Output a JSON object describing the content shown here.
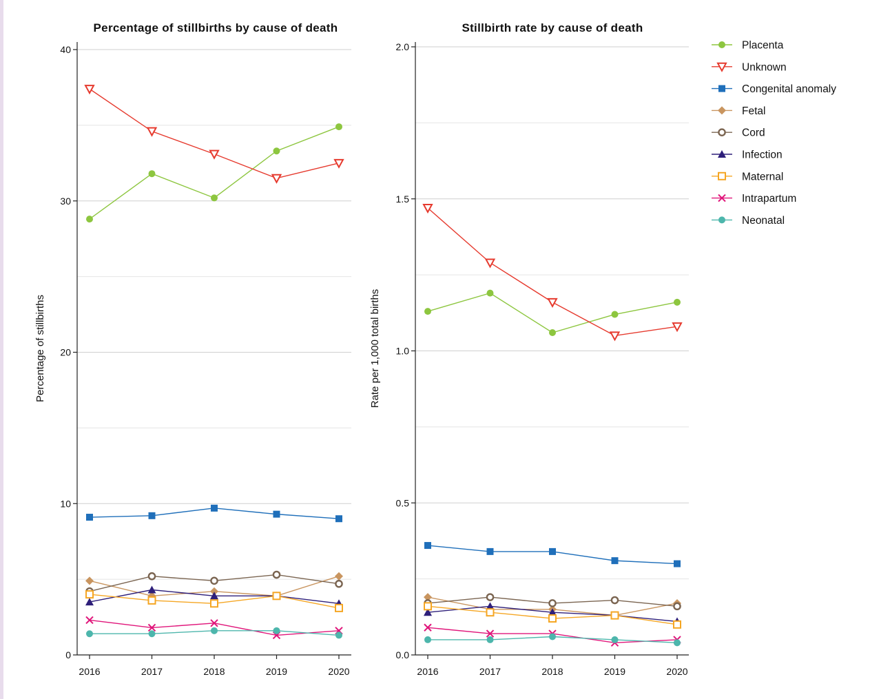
{
  "chart_data": [
    {
      "type": "line",
      "title": "Percentage of stillbirths by cause of death",
      "xlabel": "",
      "ylabel": "Percentage of stillbirths",
      "x": [
        "2016",
        "2017",
        "2018",
        "2019",
        "2020"
      ],
      "ylim": [
        0,
        40
      ],
      "yticks": [
        0,
        10,
        20,
        30,
        40
      ],
      "grid": true,
      "series": [
        {
          "name": "Placenta",
          "values": [
            28.8,
            31.8,
            30.2,
            33.3,
            34.9
          ]
        },
        {
          "name": "Unknown",
          "values": [
            37.4,
            34.6,
            33.1,
            31.5,
            32.5
          ]
        },
        {
          "name": "Congenital anomaly",
          "values": [
            9.1,
            9.2,
            9.7,
            9.3,
            9.0
          ]
        },
        {
          "name": "Fetal",
          "values": [
            4.9,
            3.9,
            4.2,
            3.9,
            5.2
          ]
        },
        {
          "name": "Cord",
          "values": [
            4.2,
            5.2,
            4.9,
            5.3,
            4.7
          ]
        },
        {
          "name": "Infection",
          "values": [
            3.5,
            4.3,
            3.9,
            3.9,
            3.4
          ]
        },
        {
          "name": "Maternal",
          "values": [
            4.0,
            3.6,
            3.4,
            3.9,
            3.1
          ]
        },
        {
          "name": "Intrapartum",
          "values": [
            2.3,
            1.8,
            2.1,
            1.3,
            1.6
          ]
        },
        {
          "name": "Neonatal",
          "values": [
            1.4,
            1.4,
            1.6,
            1.6,
            1.3
          ]
        }
      ]
    },
    {
      "type": "line",
      "title": "Stillbirth rate by cause of death",
      "xlabel": "",
      "ylabel": "Rate per 1,000 total births",
      "x": [
        "2016",
        "2017",
        "2018",
        "2019",
        "2020"
      ],
      "ylim": [
        0,
        2
      ],
      "yticks": [
        "0.0",
        "0.5",
        "1.0",
        "1.5",
        "2.0"
      ],
      "grid": true,
      "series": [
        {
          "name": "Placenta",
          "values": [
            1.13,
            1.19,
            1.06,
            1.12,
            1.16
          ]
        },
        {
          "name": "Unknown",
          "values": [
            1.47,
            1.29,
            1.16,
            1.05,
            1.08
          ]
        },
        {
          "name": "Congenital anomaly",
          "values": [
            0.36,
            0.34,
            0.34,
            0.31,
            0.3
          ]
        },
        {
          "name": "Fetal",
          "values": [
            0.19,
            0.15,
            0.15,
            0.13,
            0.17
          ]
        },
        {
          "name": "Cord",
          "values": [
            0.17,
            0.19,
            0.17,
            0.18,
            0.16
          ]
        },
        {
          "name": "Infection",
          "values": [
            0.14,
            0.16,
            0.14,
            0.13,
            0.11
          ]
        },
        {
          "name": "Maternal",
          "values": [
            0.16,
            0.14,
            0.12,
            0.13,
            0.1
          ]
        },
        {
          "name": "Intrapartum",
          "values": [
            0.09,
            0.07,
            0.07,
            0.04,
            0.05
          ]
        },
        {
          "name": "Neonatal",
          "values": [
            0.05,
            0.05,
            0.06,
            0.05,
            0.04
          ]
        }
      ]
    }
  ],
  "legend": {
    "placement": "right",
    "items": [
      {
        "name": "Placenta",
        "color": "#8dc63f",
        "marker": "filled-circle"
      },
      {
        "name": "Unknown",
        "color": "#e63a2e",
        "marker": "open-triangle-down"
      },
      {
        "name": "Congenital anomaly",
        "color": "#1f6fba",
        "marker": "filled-square"
      },
      {
        "name": "Fetal",
        "color": "#c9955f",
        "marker": "filled-diamond"
      },
      {
        "name": "Cord",
        "color": "#7a6450",
        "marker": "open-circle"
      },
      {
        "name": "Infection",
        "color": "#2e1f7a",
        "marker": "filled-triangle-up"
      },
      {
        "name": "Maternal",
        "color": "#f5a623",
        "marker": "open-square"
      },
      {
        "name": "Intrapartum",
        "color": "#e0157a",
        "marker": "cross"
      },
      {
        "name": "Neonatal",
        "color": "#4db6ac",
        "marker": "filled-circle"
      }
    ]
  }
}
